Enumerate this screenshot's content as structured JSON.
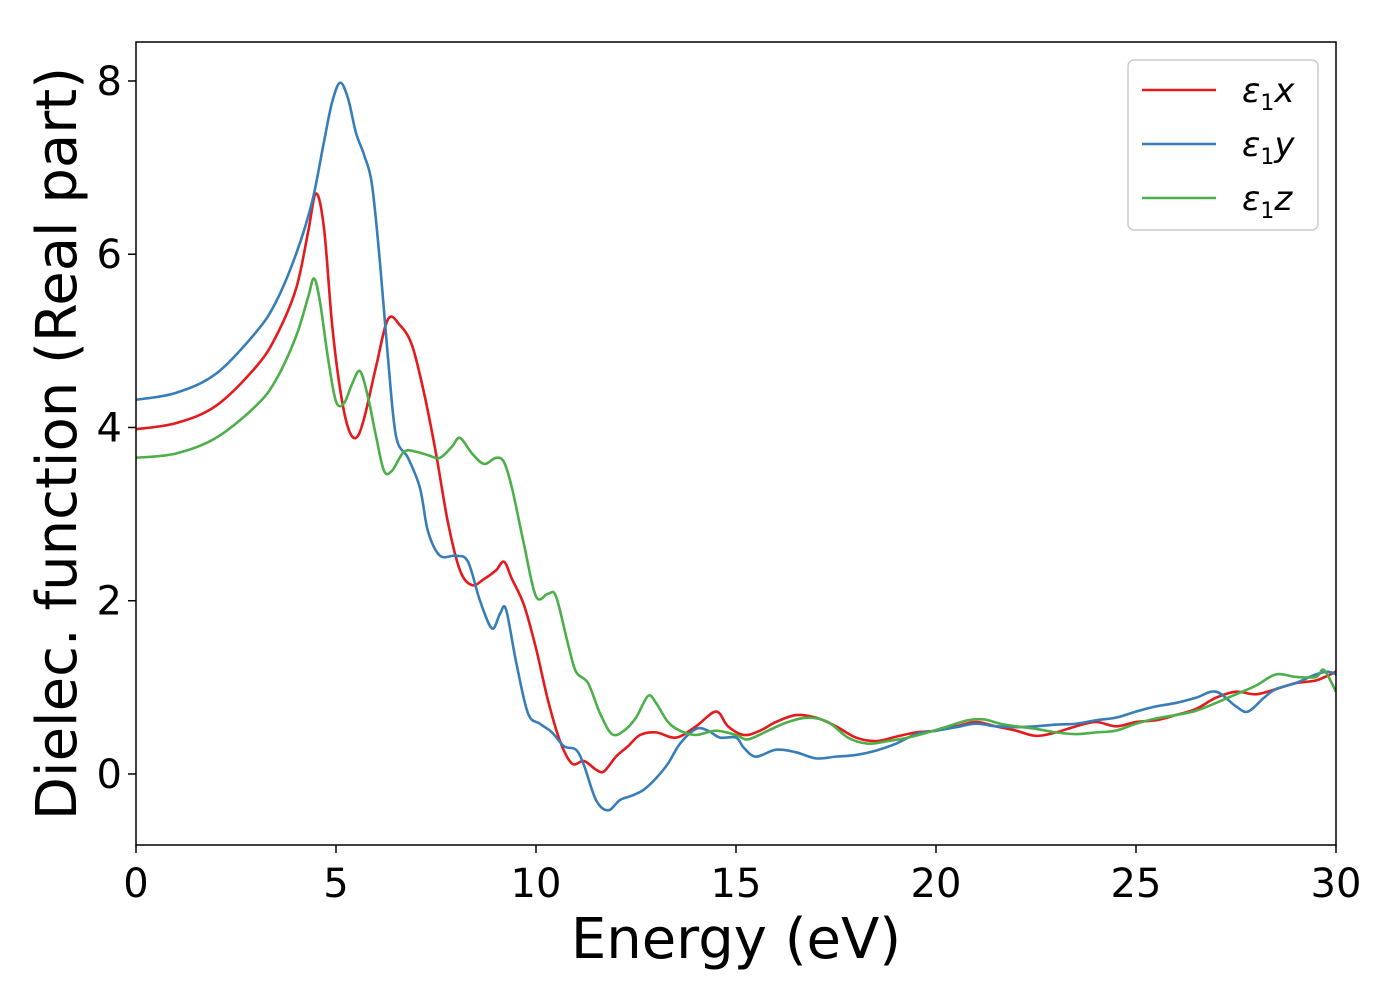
{
  "chart_data": {
    "type": "line",
    "xlabel": "Energy (eV)",
    "ylabel": "Dielec. function (Real part)",
    "xlim": [
      0,
      30
    ],
    "ylim": [
      -0.82,
      8.45
    ],
    "xticks": [
      0,
      5,
      10,
      15,
      20,
      25,
      30
    ],
    "yticks": [
      0,
      2,
      4,
      6,
      8
    ],
    "grid": false,
    "legend_position": "top-right",
    "series": [
      {
        "name": "ε1x",
        "label_base": "ε",
        "label_sub": "1",
        "label_var": "x",
        "color": "#e41a1c",
        "points": [
          [
            0,
            3.98
          ],
          [
            1,
            4.05
          ],
          [
            2,
            4.25
          ],
          [
            3,
            4.7
          ],
          [
            3.5,
            5.05
          ],
          [
            4,
            5.6
          ],
          [
            4.3,
            6.25
          ],
          [
            4.5,
            6.7
          ],
          [
            4.7,
            6.3
          ],
          [
            4.9,
            5.2
          ],
          [
            5.1,
            4.45
          ],
          [
            5.3,
            4.0
          ],
          [
            5.5,
            3.88
          ],
          [
            5.7,
            4.1
          ],
          [
            6.0,
            4.7
          ],
          [
            6.3,
            5.25
          ],
          [
            6.6,
            5.18
          ],
          [
            6.9,
            4.95
          ],
          [
            7.2,
            4.4
          ],
          [
            7.5,
            3.7
          ],
          [
            7.8,
            2.9
          ],
          [
            8.1,
            2.35
          ],
          [
            8.4,
            2.18
          ],
          [
            8.7,
            2.25
          ],
          [
            9.0,
            2.35
          ],
          [
            9.2,
            2.45
          ],
          [
            9.4,
            2.25
          ],
          [
            9.7,
            1.95
          ],
          [
            10.0,
            1.45
          ],
          [
            10.3,
            0.85
          ],
          [
            10.6,
            0.38
          ],
          [
            10.9,
            0.12
          ],
          [
            11.2,
            0.15
          ],
          [
            11.5,
            0.05
          ],
          [
            11.7,
            0.03
          ],
          [
            12.0,
            0.2
          ],
          [
            12.3,
            0.32
          ],
          [
            12.6,
            0.45
          ],
          [
            13.0,
            0.48
          ],
          [
            13.5,
            0.42
          ],
          [
            14.0,
            0.55
          ],
          [
            14.5,
            0.72
          ],
          [
            14.8,
            0.55
          ],
          [
            15.2,
            0.45
          ],
          [
            15.6,
            0.5
          ],
          [
            16.0,
            0.6
          ],
          [
            16.5,
            0.68
          ],
          [
            17.0,
            0.65
          ],
          [
            17.5,
            0.55
          ],
          [
            18.0,
            0.42
          ],
          [
            18.5,
            0.38
          ],
          [
            19.0,
            0.43
          ],
          [
            19.5,
            0.48
          ],
          [
            20.0,
            0.5
          ],
          [
            20.5,
            0.55
          ],
          [
            21.0,
            0.6
          ],
          [
            21.5,
            0.55
          ],
          [
            22.0,
            0.5
          ],
          [
            22.5,
            0.44
          ],
          [
            23.0,
            0.48
          ],
          [
            23.5,
            0.55
          ],
          [
            24.0,
            0.6
          ],
          [
            24.5,
            0.55
          ],
          [
            25.0,
            0.6
          ],
          [
            25.5,
            0.62
          ],
          [
            26.0,
            0.68
          ],
          [
            26.5,
            0.75
          ],
          [
            27.0,
            0.88
          ],
          [
            27.5,
            0.95
          ],
          [
            28.0,
            0.92
          ],
          [
            28.5,
            0.98
          ],
          [
            29.0,
            1.05
          ],
          [
            29.5,
            1.08
          ],
          [
            30.0,
            1.18
          ]
        ]
      },
      {
        "name": "ε1y",
        "label_base": "ε",
        "label_sub": "1",
        "label_var": "y",
        "color": "#377eb8",
        "points": [
          [
            0,
            4.32
          ],
          [
            1,
            4.4
          ],
          [
            2,
            4.62
          ],
          [
            3,
            5.1
          ],
          [
            3.5,
            5.45
          ],
          [
            4,
            6.0
          ],
          [
            4.4,
            6.6
          ],
          [
            4.7,
            7.3
          ],
          [
            4.9,
            7.75
          ],
          [
            5.1,
            7.98
          ],
          [
            5.3,
            7.8
          ],
          [
            5.5,
            7.4
          ],
          [
            5.7,
            7.15
          ],
          [
            5.9,
            6.8
          ],
          [
            6.1,
            5.9
          ],
          [
            6.3,
            4.8
          ],
          [
            6.5,
            3.9
          ],
          [
            6.8,
            3.65
          ],
          [
            7.1,
            3.3
          ],
          [
            7.3,
            2.8
          ],
          [
            7.6,
            2.52
          ],
          [
            8.0,
            2.52
          ],
          [
            8.3,
            2.45
          ],
          [
            8.6,
            2.0
          ],
          [
            8.9,
            1.68
          ],
          [
            9.1,
            1.85
          ],
          [
            9.25,
            1.9
          ],
          [
            9.5,
            1.3
          ],
          [
            9.8,
            0.7
          ],
          [
            10.1,
            0.58
          ],
          [
            10.4,
            0.48
          ],
          [
            10.7,
            0.32
          ],
          [
            11.0,
            0.28
          ],
          [
            11.2,
            0.1
          ],
          [
            11.5,
            -0.3
          ],
          [
            11.8,
            -0.42
          ],
          [
            12.1,
            -0.3
          ],
          [
            12.4,
            -0.25
          ],
          [
            12.7,
            -0.18
          ],
          [
            13.0,
            -0.05
          ],
          [
            13.3,
            0.12
          ],
          [
            13.6,
            0.35
          ],
          [
            14.0,
            0.52
          ],
          [
            14.3,
            0.5
          ],
          [
            14.6,
            0.42
          ],
          [
            15.0,
            0.42
          ],
          [
            15.2,
            0.3
          ],
          [
            15.5,
            0.2
          ],
          [
            16.0,
            0.28
          ],
          [
            16.5,
            0.25
          ],
          [
            17.0,
            0.18
          ],
          [
            17.5,
            0.2
          ],
          [
            18.0,
            0.22
          ],
          [
            18.5,
            0.27
          ],
          [
            19.0,
            0.35
          ],
          [
            19.5,
            0.46
          ],
          [
            20.0,
            0.5
          ],
          [
            20.5,
            0.54
          ],
          [
            21.0,
            0.58
          ],
          [
            21.5,
            0.55
          ],
          [
            22.0,
            0.54
          ],
          [
            22.5,
            0.55
          ],
          [
            23.0,
            0.57
          ],
          [
            23.5,
            0.58
          ],
          [
            24.0,
            0.62
          ],
          [
            24.5,
            0.65
          ],
          [
            25.0,
            0.72
          ],
          [
            25.5,
            0.78
          ],
          [
            26.0,
            0.82
          ],
          [
            26.5,
            0.88
          ],
          [
            27.0,
            0.95
          ],
          [
            27.5,
            0.78
          ],
          [
            27.8,
            0.72
          ],
          [
            28.2,
            0.88
          ],
          [
            28.5,
            0.98
          ],
          [
            29.0,
            1.05
          ],
          [
            29.5,
            1.15
          ],
          [
            29.8,
            1.18
          ],
          [
            30.0,
            1.15
          ]
        ]
      },
      {
        "name": "ε1z",
        "label_base": "ε",
        "label_sub": "1",
        "label_var": "z",
        "color": "#4daf4a",
        "points": [
          [
            0,
            3.65
          ],
          [
            1,
            3.7
          ],
          [
            2,
            3.88
          ],
          [
            3,
            4.25
          ],
          [
            3.5,
            4.55
          ],
          [
            4,
            5.05
          ],
          [
            4.3,
            5.5
          ],
          [
            4.45,
            5.72
          ],
          [
            4.6,
            5.45
          ],
          [
            4.8,
            4.8
          ],
          [
            5.0,
            4.3
          ],
          [
            5.2,
            4.28
          ],
          [
            5.4,
            4.5
          ],
          [
            5.6,
            4.65
          ],
          [
            5.8,
            4.35
          ],
          [
            6.0,
            3.9
          ],
          [
            6.2,
            3.5
          ],
          [
            6.4,
            3.5
          ],
          [
            6.7,
            3.72
          ],
          [
            7.0,
            3.72
          ],
          [
            7.3,
            3.68
          ],
          [
            7.6,
            3.65
          ],
          [
            7.9,
            3.78
          ],
          [
            8.1,
            3.88
          ],
          [
            8.4,
            3.7
          ],
          [
            8.7,
            3.58
          ],
          [
            9.0,
            3.65
          ],
          [
            9.2,
            3.6
          ],
          [
            9.4,
            3.3
          ],
          [
            9.7,
            2.65
          ],
          [
            10.0,
            2.05
          ],
          [
            10.3,
            2.08
          ],
          [
            10.5,
            2.05
          ],
          [
            10.8,
            1.5
          ],
          [
            11.0,
            1.18
          ],
          [
            11.3,
            1.05
          ],
          [
            11.6,
            0.7
          ],
          [
            11.9,
            0.46
          ],
          [
            12.2,
            0.5
          ],
          [
            12.5,
            0.65
          ],
          [
            12.8,
            0.9
          ],
          [
            13.0,
            0.82
          ],
          [
            13.3,
            0.6
          ],
          [
            13.6,
            0.5
          ],
          [
            14.0,
            0.45
          ],
          [
            14.5,
            0.5
          ],
          [
            15.0,
            0.45
          ],
          [
            15.3,
            0.4
          ],
          [
            15.8,
            0.5
          ],
          [
            16.3,
            0.6
          ],
          [
            16.8,
            0.65
          ],
          [
            17.3,
            0.6
          ],
          [
            17.8,
            0.42
          ],
          [
            18.3,
            0.35
          ],
          [
            18.8,
            0.38
          ],
          [
            19.3,
            0.42
          ],
          [
            19.8,
            0.48
          ],
          [
            20.3,
            0.55
          ],
          [
            20.8,
            0.62
          ],
          [
            21.2,
            0.63
          ],
          [
            21.6,
            0.58
          ],
          [
            22.0,
            0.55
          ],
          [
            22.5,
            0.52
          ],
          [
            23.0,
            0.48
          ],
          [
            23.5,
            0.46
          ],
          [
            24.0,
            0.48
          ],
          [
            24.5,
            0.5
          ],
          [
            25.0,
            0.58
          ],
          [
            25.5,
            0.64
          ],
          [
            26.0,
            0.68
          ],
          [
            26.5,
            0.73
          ],
          [
            27.0,
            0.82
          ],
          [
            27.5,
            0.92
          ],
          [
            28.0,
            1.02
          ],
          [
            28.5,
            1.15
          ],
          [
            29.0,
            1.12
          ],
          [
            29.5,
            1.12
          ],
          [
            29.7,
            1.2
          ],
          [
            30.0,
            0.95
          ]
        ]
      }
    ]
  }
}
